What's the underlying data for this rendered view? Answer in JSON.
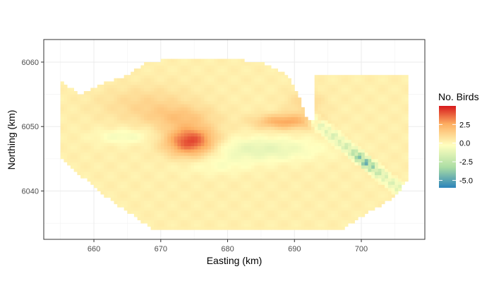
{
  "chart_data": {
    "type": "heatmap",
    "xlabel": "Easting (km)",
    "ylabel": "Northing (km)",
    "xlim": [
      652.5,
      709.5
    ],
    "ylim": [
      6032.5,
      6063.5
    ],
    "x_ticks": [
      660,
      670,
      680,
      690,
      700
    ],
    "y_ticks": [
      6040,
      6050,
      6060
    ],
    "grid": true,
    "legend": {
      "title": "No. Birds",
      "position": "right",
      "range": [
        -6,
        5
      ],
      "ticks": [
        2.5,
        0.0,
        -2.5,
        -5.0
      ],
      "tick_labels": [
        "2.5",
        "0.0",
        "-2.5",
        "-5.0"
      ]
    },
    "colors": {
      "high": "#d7191c",
      "mid_high": "#fdae61",
      "neutral": "#ffffbf",
      "mid_low": "#abdda4",
      "low": "#2b83ba"
    },
    "region": {
      "description_cell_km": 0.5,
      "outline": [
        [
          655,
          6057
        ],
        [
          658,
          6055
        ],
        [
          661,
          6056.5
        ],
        [
          665,
          6058
        ],
        [
          668,
          6060
        ],
        [
          672,
          6060.5
        ],
        [
          680,
          6060.5
        ],
        [
          685,
          6060
        ],
        [
          689,
          6058
        ],
        [
          691,
          6054
        ],
        [
          692,
          6051
        ],
        [
          693,
          6051
        ],
        [
          693,
          6058
        ],
        [
          707,
          6058
        ],
        [
          707,
          6042
        ],
        [
          705,
          6039
        ],
        [
          700,
          6036
        ],
        [
          697,
          6034
        ],
        [
          669,
          6034
        ],
        [
          662,
          6039
        ],
        [
          655,
          6045
        ]
      ]
    },
    "hotspots": [
      {
        "x": 674.5,
        "y": 6047.7,
        "value": 4.2,
        "sx": 2.6,
        "sy": 1.6
      },
      {
        "x": 688.5,
        "y": 6050.8,
        "value": 2.4,
        "sx": 3.0,
        "sy": 0.8
      },
      {
        "x": 668.0,
        "y": 6053.5,
        "value": 0.9,
        "sx": 5.0,
        "sy": 2.0
      },
      {
        "x": 673.0,
        "y": 6051.5,
        "value": 1.2,
        "sx": 3.5,
        "sy": 1.2
      },
      {
        "x": 691.5,
        "y": 6053.5,
        "value": 0.8,
        "sx": 2.0,
        "sy": 1.5
      }
    ],
    "coldspots": [
      {
        "x": 685.0,
        "y": 6046.5,
        "value": -1.4,
        "sx": 6.0,
        "sy": 1.3
      },
      {
        "x": 664.5,
        "y": 6048.5,
        "value": -0.9,
        "sx": 3.0,
        "sy": 0.8
      },
      {
        "x": 678.0,
        "y": 6044.0,
        "value": -0.6,
        "sx": 4.0,
        "sy": 1.0
      }
    ],
    "diagonal_band": {
      "start": [
        693.0,
        6051.0
      ],
      "end": [
        705.5,
        6040.5
      ],
      "width_km": 1.2,
      "min_value": -5.6,
      "min_at": [
        700.0,
        6043.8
      ]
    }
  }
}
